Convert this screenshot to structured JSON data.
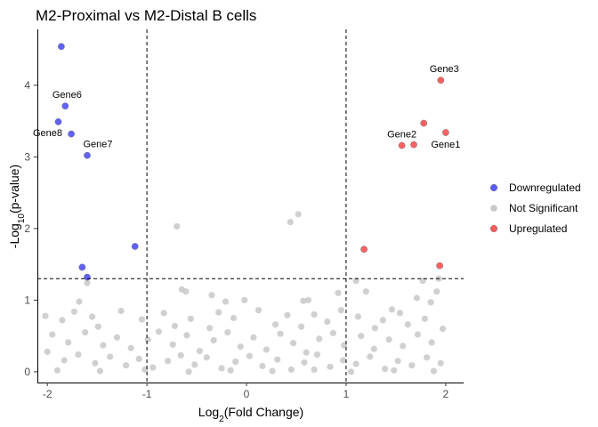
{
  "chart_data": {
    "type": "scatter",
    "title": "M2-Proximal vs M2-Distal B cells",
    "xlabel": {
      "prefix": "Log",
      "sub": "2",
      "suffix": "(Fold Change)"
    },
    "ylabel": {
      "prefix": "-Log",
      "sub": "10",
      "suffix": "(p-value)"
    },
    "xlim": [
      -2.1,
      2.18
    ],
    "ylim": [
      -0.15,
      4.78
    ],
    "x_ticks": [
      -2,
      -1,
      0,
      1,
      2
    ],
    "y_ticks": [
      0,
      1,
      2,
      3,
      4
    ],
    "vlines": [
      -1,
      1
    ],
    "hline": 1.3,
    "grid": false,
    "legend_position": "right",
    "colors": {
      "Downregulated": "#5a5aff",
      "Not Significant": "#c8c8c8",
      "Upregulated": "#ff5a5a"
    },
    "legend": [
      "Downregulated",
      "Not Significant",
      "Upregulated"
    ],
    "series": [
      {
        "name": "Downregulated",
        "points": [
          {
            "x": -1.86,
            "y": 4.54
          },
          {
            "x": -1.82,
            "y": 3.71,
            "label": "Gene6"
          },
          {
            "x": -1.89,
            "y": 3.49,
            "label": "Gene8"
          },
          {
            "x": -1.76,
            "y": 3.32
          },
          {
            "x": -1.6,
            "y": 3.02,
            "label": "Gene7"
          },
          {
            "x": -1.12,
            "y": 1.75
          },
          {
            "x": -1.65,
            "y": 1.46
          },
          {
            "x": -1.6,
            "y": 1.32
          }
        ]
      },
      {
        "name": "Upregulated",
        "points": [
          {
            "x": 1.95,
            "y": 4.07,
            "label": "Gene3"
          },
          {
            "x": 1.78,
            "y": 3.47
          },
          {
            "x": 2.0,
            "y": 3.34,
            "label": "Gene1"
          },
          {
            "x": 1.56,
            "y": 3.16,
            "label": "Gene2"
          },
          {
            "x": 1.68,
            "y": 3.17
          },
          {
            "x": 1.18,
            "y": 1.71
          },
          {
            "x": 1.94,
            "y": 1.48
          }
        ]
      },
      {
        "name": "Not Significant",
        "points": [
          {
            "x": 0.52,
            "y": 2.2
          },
          {
            "x": 0.44,
            "y": 2.09
          },
          {
            "x": -0.7,
            "y": 2.03
          },
          {
            "x": -1.6,
            "y": 1.24
          },
          {
            "x": 1.1,
            "y": 1.27
          },
          {
            "x": 1.77,
            "y": 1.27
          },
          {
            "x": 1.93,
            "y": 1.3
          },
          {
            "x": -1.68,
            "y": 0.98
          },
          {
            "x": -0.65,
            "y": 1.15
          },
          {
            "x": -0.61,
            "y": 1.12
          },
          {
            "x": -0.35,
            "y": 1.07
          },
          {
            "x": -0.21,
            "y": 0.98
          },
          {
            "x": -0.02,
            "y": 1.0
          },
          {
            "x": 0.57,
            "y": 0.99
          },
          {
            "x": 0.62,
            "y": 1.0
          },
          {
            "x": 0.92,
            "y": 1.1
          },
          {
            "x": 1.2,
            "y": 1.12
          },
          {
            "x": 1.71,
            "y": 1.03
          },
          {
            "x": 1.46,
            "y": 0.87
          },
          {
            "x": 1.85,
            "y": 0.97
          },
          {
            "x": 1.91,
            "y": 1.12
          },
          {
            "x": -2.02,
            "y": 0.78
          },
          {
            "x": -1.85,
            "y": 0.72
          },
          {
            "x": -1.73,
            "y": 0.84
          },
          {
            "x": -1.55,
            "y": 0.77
          },
          {
            "x": -1.49,
            "y": 0.63
          },
          {
            "x": -1.26,
            "y": 0.85
          },
          {
            "x": -1.05,
            "y": 0.73
          },
          {
            "x": -0.83,
            "y": 0.82
          },
          {
            "x": -0.72,
            "y": 0.64
          },
          {
            "x": -0.56,
            "y": 0.74
          },
          {
            "x": -0.37,
            "y": 0.61
          },
          {
            "x": -0.28,
            "y": 0.83
          },
          {
            "x": -0.13,
            "y": 0.75
          },
          {
            "x": 0.12,
            "y": 0.86
          },
          {
            "x": 0.29,
            "y": 0.66
          },
          {
            "x": 0.41,
            "y": 0.79
          },
          {
            "x": 0.55,
            "y": 0.63
          },
          {
            "x": 0.68,
            "y": 0.8
          },
          {
            "x": 0.81,
            "y": 0.7
          },
          {
            "x": 0.95,
            "y": 0.86
          },
          {
            "x": 1.12,
            "y": 0.77
          },
          {
            "x": 1.29,
            "y": 0.61
          },
          {
            "x": 1.37,
            "y": 0.72
          },
          {
            "x": 1.54,
            "y": 0.82
          },
          {
            "x": 1.62,
            "y": 0.66
          },
          {
            "x": 1.79,
            "y": 0.74
          },
          {
            "x": 1.97,
            "y": 0.6
          },
          {
            "x": -1.95,
            "y": 0.52
          },
          {
            "x": -1.79,
            "y": 0.41
          },
          {
            "x": -1.62,
            "y": 0.55
          },
          {
            "x": -1.44,
            "y": 0.37
          },
          {
            "x": -1.3,
            "y": 0.48
          },
          {
            "x": -1.16,
            "y": 0.33
          },
          {
            "x": -0.99,
            "y": 0.45
          },
          {
            "x": -0.88,
            "y": 0.56
          },
          {
            "x": -0.74,
            "y": 0.38
          },
          {
            "x": -0.6,
            "y": 0.51
          },
          {
            "x": -0.47,
            "y": 0.29
          },
          {
            "x": -0.33,
            "y": 0.44
          },
          {
            "x": -0.19,
            "y": 0.55
          },
          {
            "x": -0.06,
            "y": 0.35
          },
          {
            "x": 0.07,
            "y": 0.48
          },
          {
            "x": 0.2,
            "y": 0.31
          },
          {
            "x": 0.34,
            "y": 0.53
          },
          {
            "x": 0.47,
            "y": 0.4
          },
          {
            "x": 0.6,
            "y": 0.27
          },
          {
            "x": 0.73,
            "y": 0.46
          },
          {
            "x": 0.87,
            "y": 0.54
          },
          {
            "x": 0.98,
            "y": 0.37
          },
          {
            "x": 1.15,
            "y": 0.5
          },
          {
            "x": 1.28,
            "y": 0.32
          },
          {
            "x": 1.43,
            "y": 0.45
          },
          {
            "x": 1.57,
            "y": 0.36
          },
          {
            "x": 1.72,
            "y": 0.52
          },
          {
            "x": 1.86,
            "y": 0.41
          },
          {
            "x": -2.0,
            "y": 0.28
          },
          {
            "x": -1.83,
            "y": 0.16
          },
          {
            "x": -1.69,
            "y": 0.24
          },
          {
            "x": -1.52,
            "y": 0.12
          },
          {
            "x": -1.37,
            "y": 0.21
          },
          {
            "x": -1.21,
            "y": 0.09
          },
          {
            "x": -1.08,
            "y": 0.18
          },
          {
            "x": -0.94,
            "y": 0.06
          },
          {
            "x": -0.79,
            "y": 0.15
          },
          {
            "x": -0.66,
            "y": 0.23
          },
          {
            "x": -0.52,
            "y": 0.1
          },
          {
            "x": -0.4,
            "y": 0.2
          },
          {
            "x": -0.25,
            "y": 0.05
          },
          {
            "x": -0.11,
            "y": 0.14
          },
          {
            "x": 0.03,
            "y": 0.22
          },
          {
            "x": 0.16,
            "y": 0.08
          },
          {
            "x": 0.31,
            "y": 0.17
          },
          {
            "x": 0.45,
            "y": 0.03
          },
          {
            "x": 0.58,
            "y": 0.13
          },
          {
            "x": 0.71,
            "y": 0.24
          },
          {
            "x": 0.84,
            "y": 0.07
          },
          {
            "x": 0.97,
            "y": 0.16
          },
          {
            "x": 1.1,
            "y": 0.11
          },
          {
            "x": 1.24,
            "y": 0.21
          },
          {
            "x": 1.39,
            "y": 0.04
          },
          {
            "x": 1.52,
            "y": 0.15
          },
          {
            "x": 1.66,
            "y": 0.09
          },
          {
            "x": 1.81,
            "y": 0.2
          },
          {
            "x": 1.95,
            "y": 0.12
          },
          {
            "x": -1.9,
            "y": 0.02
          },
          {
            "x": -1.47,
            "y": 0.01
          },
          {
            "x": -1.02,
            "y": 0.03
          },
          {
            "x": -0.58,
            "y": 0.0
          },
          {
            "x": -0.16,
            "y": 0.02
          },
          {
            "x": 0.26,
            "y": 0.01
          },
          {
            "x": 0.68,
            "y": 0.03
          },
          {
            "x": 1.05,
            "y": 0.0
          },
          {
            "x": 1.48,
            "y": 0.02
          },
          {
            "x": 1.88,
            "y": 0.01
          }
        ]
      }
    ]
  }
}
